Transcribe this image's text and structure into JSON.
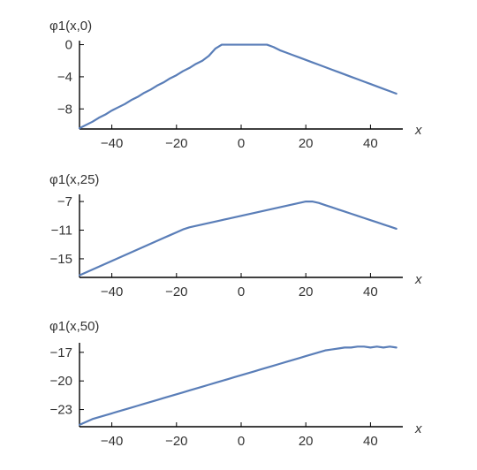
{
  "chart_data": [
    {
      "type": "line",
      "ylabel": "φ1(x,0)",
      "xlabel": "x",
      "xlim": [
        -50,
        50
      ],
      "ylim": [
        -10.5,
        0.5
      ],
      "xticks": [
        -40,
        -20,
        0,
        20,
        40
      ],
      "xtick_labels": [
        "−40",
        "−20",
        "0",
        "20",
        "40"
      ],
      "yticks": [
        0,
        -4,
        -8
      ],
      "ytick_labels": [
        "0",
        "−4",
        "−8"
      ],
      "grid": false,
      "series": [
        {
          "color": "#5a7eb8",
          "x": [
            -50,
            -48,
            -46,
            -44,
            -42,
            -40,
            -38,
            -36,
            -34,
            -32,
            -30,
            -28,
            -26,
            -24,
            -22,
            -20,
            -18,
            -16,
            -14,
            -12,
            -10,
            -8,
            -6,
            -4,
            -2,
            0,
            2,
            4,
            6,
            8,
            10,
            12,
            14,
            16,
            18,
            20,
            22,
            24,
            26,
            28,
            30,
            32,
            34,
            36,
            38,
            40,
            42,
            44,
            46,
            48
          ],
          "y": [
            -10.4,
            -10.0,
            -9.6,
            -9.1,
            -8.7,
            -8.2,
            -7.8,
            -7.4,
            -6.9,
            -6.5,
            -6.0,
            -5.6,
            -5.1,
            -4.7,
            -4.2,
            -3.8,
            -3.3,
            -2.9,
            -2.4,
            -2.0,
            -1.4,
            -0.5,
            0,
            0,
            0,
            0,
            0,
            0,
            0,
            0,
            -0.3,
            -0.7,
            -1.0,
            -1.3,
            -1.6,
            -1.9,
            -2.2,
            -2.5,
            -2.8,
            -3.1,
            -3.4,
            -3.7,
            -4.0,
            -4.3,
            -4.6,
            -4.9,
            -5.2,
            -5.5,
            -5.8,
            -6.1
          ]
        }
      ]
    },
    {
      "type": "line",
      "ylabel": "φ1(x,25)",
      "xlabel": "x",
      "xlim": [
        -50,
        50
      ],
      "ylim": [
        -17.6,
        -6.0
      ],
      "xticks": [
        -40,
        -20,
        0,
        20,
        40
      ],
      "xtick_labels": [
        "−40",
        "−20",
        "0",
        "20",
        "40"
      ],
      "yticks": [
        -7,
        -11,
        -15
      ],
      "ytick_labels": [
        "−7",
        "−11",
        "−15"
      ],
      "grid": false,
      "series": [
        {
          "color": "#5a7eb8",
          "x": [
            -50,
            -48,
            -46,
            -44,
            -42,
            -40,
            -38,
            -36,
            -34,
            -32,
            -30,
            -28,
            -26,
            -24,
            -22,
            -20,
            -18,
            -16,
            -14,
            -12,
            -10,
            -8,
            -6,
            -4,
            -2,
            0,
            2,
            4,
            6,
            8,
            10,
            12,
            14,
            16,
            18,
            20,
            22,
            24,
            26,
            28,
            30,
            32,
            34,
            36,
            38,
            40,
            42,
            44,
            46,
            48
          ],
          "y": [
            -17.3,
            -16.9,
            -16.5,
            -16.1,
            -15.7,
            -15.3,
            -14.9,
            -14.5,
            -14.1,
            -13.7,
            -13.3,
            -12.9,
            -12.5,
            -12.1,
            -11.7,
            -11.3,
            -10.9,
            -10.6,
            -10.4,
            -10.2,
            -10.0,
            -9.8,
            -9.6,
            -9.4,
            -9.2,
            -9.0,
            -8.8,
            -8.6,
            -8.4,
            -8.2,
            -8.0,
            -7.8,
            -7.6,
            -7.4,
            -7.2,
            -7.0,
            -7.0,
            -7.2,
            -7.5,
            -7.8,
            -8.1,
            -8.4,
            -8.7,
            -9.0,
            -9.3,
            -9.6,
            -9.9,
            -10.2,
            -10.5,
            -10.8
          ]
        }
      ]
    },
    {
      "type": "line",
      "ylabel": "φ1(x,50)",
      "xlabel": "x",
      "xlim": [
        -50,
        50
      ],
      "ylim": [
        -24.8,
        -16.0
      ],
      "xticks": [
        -40,
        -20,
        0,
        20,
        40
      ],
      "xtick_labels": [
        "−40",
        "−20",
        "0",
        "20",
        "40"
      ],
      "yticks": [
        -17,
        -20,
        -23
      ],
      "ytick_labels": [
        "−17",
        "−20",
        "−23"
      ],
      "grid": false,
      "series": [
        {
          "color": "#5a7eb8",
          "x": [
            -50,
            -48,
            -46,
            -44,
            -42,
            -40,
            -38,
            -36,
            -34,
            -32,
            -30,
            -28,
            -26,
            -24,
            -22,
            -20,
            -18,
            -16,
            -14,
            -12,
            -10,
            -8,
            -6,
            -4,
            -2,
            0,
            2,
            4,
            6,
            8,
            10,
            12,
            14,
            16,
            18,
            20,
            22,
            24,
            26,
            28,
            30,
            32,
            34,
            36,
            38,
            40,
            42,
            44,
            46,
            48
          ],
          "y": [
            -24.6,
            -24.3,
            -24.0,
            -23.8,
            -23.6,
            -23.4,
            -23.2,
            -23.0,
            -22.8,
            -22.6,
            -22.4,
            -22.2,
            -22.0,
            -21.8,
            -21.6,
            -21.4,
            -21.2,
            -21.0,
            -20.8,
            -20.6,
            -20.4,
            -20.2,
            -20.0,
            -19.8,
            -19.6,
            -19.4,
            -19.2,
            -19.0,
            -18.8,
            -18.6,
            -18.4,
            -18.2,
            -18.0,
            -17.8,
            -17.6,
            -17.4,
            -17.2,
            -17.0,
            -16.8,
            -16.7,
            -16.6,
            -16.5,
            -16.5,
            -16.4,
            -16.4,
            -16.5,
            -16.4,
            -16.5,
            -16.4,
            -16.5
          ]
        }
      ]
    }
  ]
}
